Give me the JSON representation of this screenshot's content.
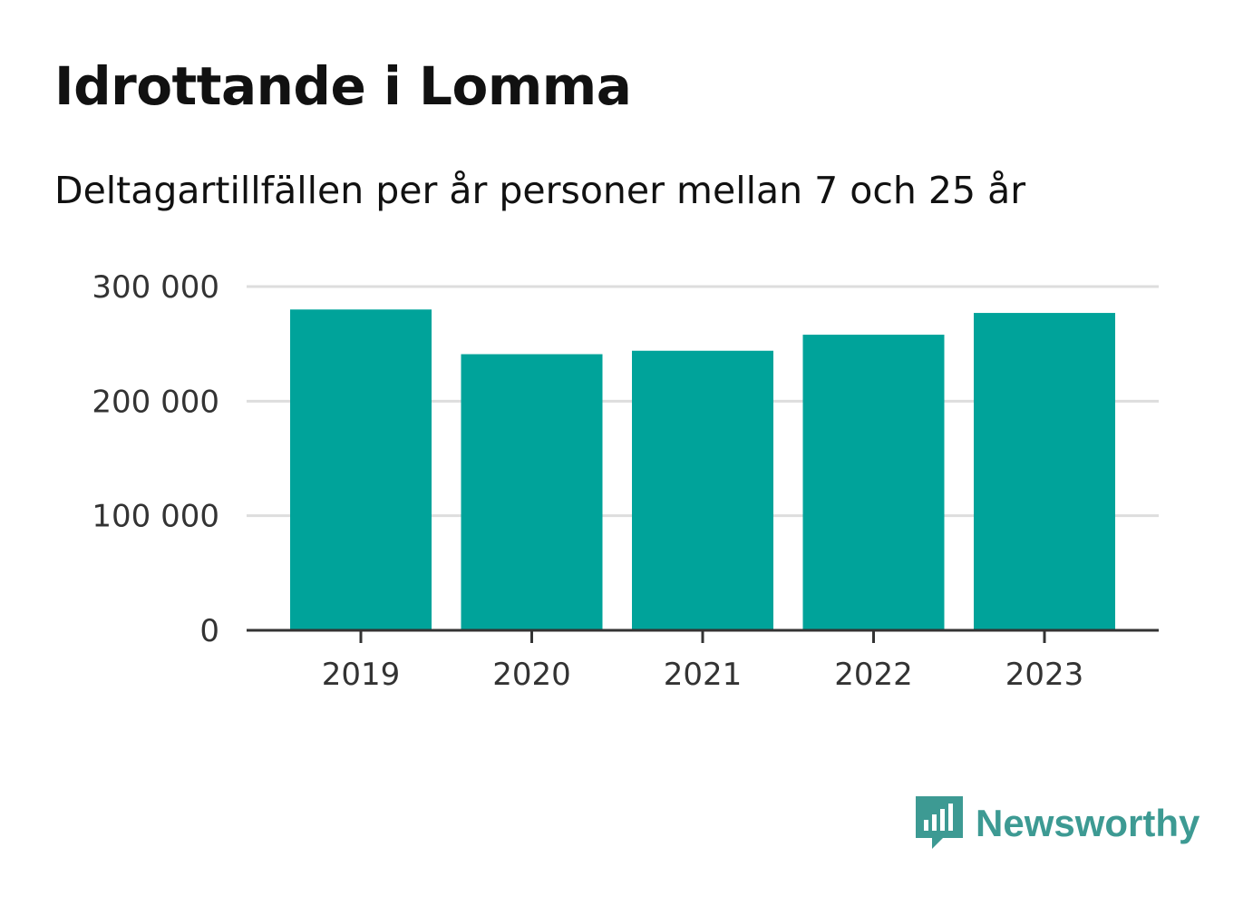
{
  "chart_data": {
    "type": "bar",
    "title": "Idrottande i Lomma",
    "subtitle": "Deltagartillfällen per år personer mellan 7 och 25 år",
    "categories": [
      "2019",
      "2020",
      "2021",
      "2022",
      "2023"
    ],
    "values": [
      280000,
      241000,
      244000,
      258000,
      277000
    ],
    "ylim": [
      0,
      300000
    ],
    "yticks": [
      0,
      100000,
      200000,
      300000
    ],
    "ytick_labels": [
      "0",
      "100 000",
      "200 000",
      "300 000"
    ],
    "xlabel": "",
    "ylabel": "",
    "grid": true,
    "bar_color": "#00a39a"
  },
  "branding": {
    "logo_text": "Newsworthy",
    "logo_icon": "newsworthy-chat-bars-icon",
    "logo_color": "#3d9a93"
  }
}
